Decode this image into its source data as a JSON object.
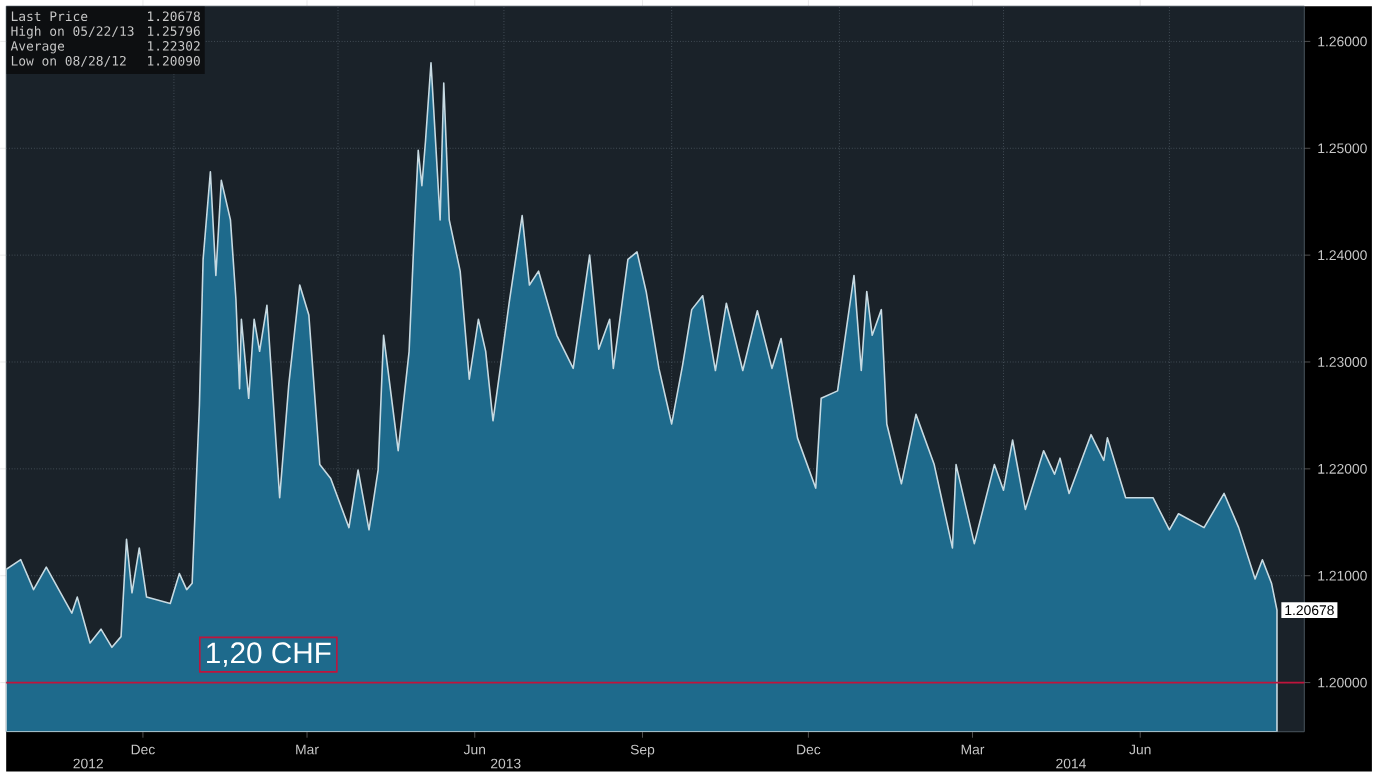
{
  "chart_data": {
    "type": "area",
    "x": [
      "2012-10-01",
      "2012-10-09",
      "2012-10-16",
      "2012-10-23",
      "2012-11-06",
      "2012-11-09",
      "2012-11-16",
      "2012-11-22",
      "2012-11-28",
      "2012-12-03",
      "2012-12-06",
      "2012-12-09",
      "2012-12-13",
      "2012-12-17",
      "2012-12-30",
      "2013-01-04",
      "2013-01-08",
      "2013-01-11",
      "2013-01-15",
      "2013-01-17",
      "2013-01-21",
      "2013-01-24",
      "2013-01-27",
      "2013-02-01",
      "2013-02-04",
      "2013-02-06",
      "2013-02-07",
      "2013-02-11",
      "2013-02-14",
      "2013-02-17",
      "2013-02-21",
      "2013-02-28",
      "2013-03-05",
      "2013-03-11",
      "2013-03-16",
      "2013-03-22",
      "2013-03-28",
      "2013-04-07",
      "2013-04-12",
      "2013-04-18",
      "2013-04-23",
      "2013-04-26",
      "2013-05-04",
      "2013-05-10",
      "2013-05-13",
      "2013-05-15",
      "2013-05-17",
      "2013-05-19",
      "2013-05-22",
      "2013-05-27",
      "2013-05-29",
      "2013-06-01",
      "2013-06-07",
      "2013-06-12",
      "2013-06-17",
      "2013-06-21",
      "2013-06-25",
      "2013-06-29",
      "2013-07-04",
      "2013-07-11",
      "2013-07-15",
      "2013-07-20",
      "2013-07-30",
      "2013-08-08",
      "2013-08-17",
      "2013-08-22",
      "2013-08-28",
      "2013-08-30",
      "2013-09-07",
      "2013-09-12",
      "2013-09-17",
      "2013-09-24",
      "2013-10-01",
      "2013-10-07",
      "2013-10-12",
      "2013-10-18",
      "2013-10-25",
      "2013-10-31",
      "2013-11-09",
      "2013-11-17",
      "2013-11-25",
      "2013-11-30",
      "2013-12-09",
      "2013-12-19",
      "2013-12-22",
      "2013-12-31",
      "2014-01-09",
      "2014-01-13",
      "2014-01-16",
      "2014-01-19",
      "2014-01-24",
      "2014-01-27",
      "2014-02-04",
      "2014-02-12",
      "2014-02-22",
      "2014-03-04",
      "2014-03-06",
      "2014-03-16",
      "2014-03-27",
      "2014-04-01",
      "2014-04-06",
      "2014-04-13",
      "2014-04-23",
      "2014-04-29",
      "2014-05-02",
      "2014-05-07",
      "2014-05-19",
      "2014-05-26",
      "2014-05-28",
      "2014-06-07",
      "2014-06-22",
      "2014-07-01",
      "2014-07-06",
      "2014-07-20",
      "2014-07-31",
      "2014-08-08",
      "2014-08-17",
      "2014-08-21",
      "2014-08-26",
      "2014-08-29"
    ],
    "series": [
      {
        "color": "#1e6a8c",
        "values": [
          1.2106,
          1.2115,
          1.2087,
          1.2108,
          1.2065,
          1.208,
          1.2037,
          1.205,
          1.2033,
          1.2043,
          1.2134,
          1.2084,
          1.2126,
          1.208,
          1.2074,
          1.2102,
          1.2087,
          1.2093,
          1.226,
          1.2396,
          1.2478,
          1.2381,
          1.247,
          1.2433,
          1.2359,
          1.2275,
          1.234,
          1.2266,
          1.234,
          1.231,
          1.2353,
          1.2173,
          1.2279,
          1.2372,
          1.2344,
          1.2204,
          1.2191,
          1.2145,
          1.2199,
          1.2143,
          1.2199,
          1.2325,
          1.2217,
          1.231,
          1.2428,
          1.2498,
          1.2465,
          1.2507,
          1.258,
          1.2433,
          1.2561,
          1.2433,
          1.2385,
          1.2284,
          1.234,
          1.231,
          1.2245,
          1.2294,
          1.2357,
          1.2437,
          1.2372,
          1.2385,
          1.2325,
          1.2294,
          1.24,
          1.2312,
          1.234,
          1.2294,
          1.2396,
          1.2403,
          1.2366,
          1.2294,
          1.2242,
          1.2297,
          1.2349,
          1.2362,
          1.2292,
          1.2355,
          1.2292,
          1.2348,
          1.2294,
          1.2322,
          1.2229,
          1.2182,
          1.2266,
          1.2273,
          1.2381,
          1.2292,
          1.2366,
          1.2325,
          1.2349,
          1.2242,
          1.2186,
          1.2251,
          1.2204,
          1.2126,
          1.2204,
          1.213,
          1.2204,
          1.218,
          1.2227,
          1.2162,
          1.2217,
          1.2195,
          1.221,
          1.2177,
          1.2232,
          1.2208,
          1.2229,
          1.2173,
          1.2173,
          1.2143,
          1.2158,
          1.2145,
          1.2177,
          1.2145,
          1.2097,
          1.2115,
          1.2093,
          1.20678
        ],
        "value_labels": [
          null,
          null,
          null,
          null,
          null,
          null,
          null,
          null,
          null,
          null,
          null,
          null,
          null,
          null,
          null,
          null,
          null,
          null,
          null,
          null,
          null,
          null,
          null,
          null,
          null,
          null,
          null,
          null,
          null,
          null,
          null,
          null,
          null,
          null,
          null,
          null,
          null,
          null,
          null,
          null,
          null,
          null,
          null,
          null,
          null,
          null,
          null,
          null,
          null,
          null,
          null,
          null,
          null,
          null,
          null,
          null,
          null,
          null,
          null,
          null,
          null,
          null,
          null,
          null,
          null,
          null,
          null,
          null,
          null,
          null,
          null,
          null,
          null,
          null,
          null,
          null,
          null,
          null,
          null,
          null,
          null,
          null,
          null,
          null,
          null,
          null,
          null,
          null,
          null,
          null,
          null,
          null,
          null,
          null,
          null,
          null,
          null,
          null,
          null,
          null,
          null,
          null,
          null,
          null,
          null,
          null,
          null,
          null,
          null,
          null,
          null,
          null,
          null,
          null,
          null,
          null,
          null,
          null,
          null,
          "1.20678"
        ]
      }
    ],
    "xlim": [
      "2012-10-01",
      "2014-09-13"
    ],
    "ylim": [
      1.1954,
      1.2633
    ],
    "xticks": [
      {
        "value": "2012-12-15",
        "label": "Dec"
      },
      {
        "value": "2013-03-15",
        "label": "Mar"
      },
      {
        "value": "2013-06-15",
        "label": "Jun"
      },
      {
        "value": "2013-09-15",
        "label": "Sep"
      },
      {
        "value": "2013-12-15",
        "label": "Dec"
      },
      {
        "value": "2014-03-15",
        "label": "Mar"
      },
      {
        "value": "2014-06-15",
        "label": "Jun"
      },
      {
        "value": "2013-01-01",
        "label": null
      },
      {
        "value": "2013-04-01",
        "label": null
      },
      {
        "value": "2013-07-01",
        "label": null
      },
      {
        "value": "2013-10-01",
        "label": null
      },
      {
        "value": "2014-01-01",
        "label": null
      },
      {
        "value": "2014-04-01",
        "label": null
      },
      {
        "value": "2014-07-01",
        "label": null
      }
    ],
    "yticks": [
      {
        "value": 1.2,
        "label": "1.20000"
      },
      {
        "value": 1.21,
        "label": "1.21000"
      },
      {
        "value": 1.22,
        "label": "1.22000"
      },
      {
        "value": 1.23,
        "label": "1.23000"
      },
      {
        "value": 1.24,
        "label": "1.24000"
      },
      {
        "value": 1.25,
        "label": "1.25000"
      },
      {
        "value": 1.26,
        "label": "1.26000"
      }
    ],
    "grid": true,
    "ref_lines": [
      {
        "axis": "y",
        "value": 1.2,
        "label": "1,20 CHF",
        "color": "#c0143c"
      }
    ],
    "annotations": [
      "Last Price",
      "1.20678",
      "High on 05/22/13",
      "1.25796",
      "Average",
      "1.22302",
      "Low on 08/28/12",
      "1.20090",
      "2012",
      "2013",
      "2014"
    ]
  }
}
